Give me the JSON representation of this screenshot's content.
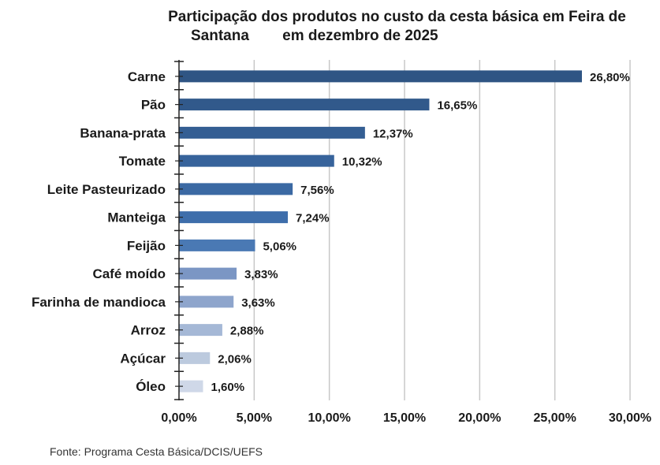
{
  "chart_data": {
    "type": "bar",
    "orientation": "horizontal",
    "title": "Participação dos produtos no custo da cesta básica em Feira de Santana em dezembro de 2025",
    "title_lines": [
      "Participação dos produtos no custo da cesta básica em Feira de",
      "Santana        em dezembro de 2025"
    ],
    "categories": [
      "Carne",
      "Pão",
      "Banana-prata",
      "Tomate",
      "Leite Pasteurizado",
      "Manteiga",
      "Feijão",
      "Café moído",
      "Farinha de mandioca",
      "Arroz",
      "Açúcar",
      "Óleo"
    ],
    "values": [
      26.8,
      16.65,
      12.37,
      10.32,
      7.56,
      7.24,
      5.06,
      3.83,
      3.63,
      2.88,
      2.06,
      1.6
    ],
    "value_labels": [
      "26,80%",
      "16,65%",
      "12,37%",
      "10,32%",
      "7,56%",
      "7,24%",
      "5,06%",
      "3,83%",
      "3,63%",
      "2,88%",
      "2,06%",
      "1,60%"
    ],
    "bar_colors": [
      "#2f5584",
      "#31598b",
      "#345e93",
      "#37639b",
      "#3b69a3",
      "#3e6eab",
      "#4a79b4",
      "#7b96c4",
      "#8ea5cc",
      "#a5b8d6",
      "#bccade",
      "#cfd8e8"
    ],
    "xlim": [
      0,
      30
    ],
    "xticks": [
      0,
      5,
      10,
      15,
      20,
      25,
      30
    ],
    "xtick_labels": [
      "0,00%",
      "5,00%",
      "10,00%",
      "15,00%",
      "20,00%",
      "25,00%",
      "30,00%"
    ],
    "xlabel": "",
    "ylabel": "",
    "grid": true,
    "legend": "none"
  },
  "source": "Fonte: Programa Cesta Básica/DCIS/UEFS"
}
